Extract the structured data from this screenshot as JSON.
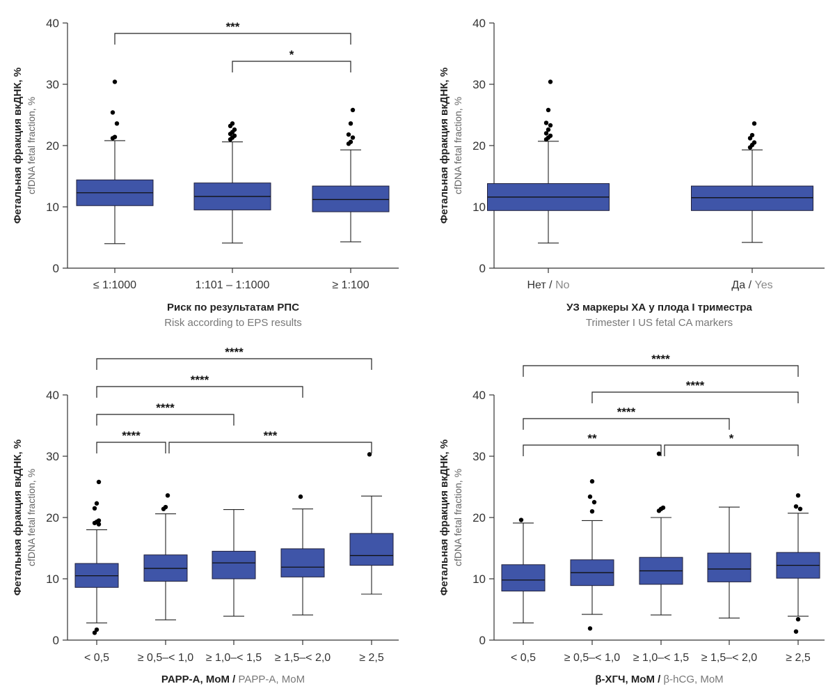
{
  "colors": {
    "box": "#3f55a8",
    "box_dark": "#2f4f9e",
    "outlier": "#000000"
  },
  "chart_data": [
    {
      "type": "box",
      "ylabel_ru": "Фетальная фракция вкДНК, %",
      "ylabel_en": "cfDNA fetal fraction, %",
      "xtitle_ru": "Риск по результатам РПС",
      "xtitle_en": "Risk according to EPS results",
      "xtitle_inline": false,
      "ylim": [
        0,
        40
      ],
      "yticks": [
        "0",
        "10",
        "20",
        "30",
        "40"
      ],
      "categories": [
        "≤ 1:1000",
        "1:101 – 1:1000",
        "≥ 1:100"
      ],
      "boxes": [
        {
          "whisker_low": 4.0,
          "q1": 10.2,
          "median": 12.3,
          "q3": 14.4,
          "whisker_high": 20.8,
          "outliers": [
            21.2,
            21.4,
            23.6,
            25.4,
            30.4
          ]
        },
        {
          "whisker_low": 4.1,
          "q1": 9.5,
          "median": 11.7,
          "q3": 13.9,
          "whisker_high": 20.6,
          "outliers": [
            21.0,
            21.3,
            21.6,
            21.9,
            22.2,
            22.6,
            23.2,
            23.6
          ]
        },
        {
          "whisker_low": 4.3,
          "q1": 9.2,
          "median": 11.2,
          "q3": 13.4,
          "whisker_high": 19.3,
          "outliers": [
            20.3,
            20.6,
            21.3,
            21.8,
            23.6,
            25.8
          ]
        }
      ],
      "significance": [
        {
          "from": 0,
          "to": 2,
          "level": 1,
          "label": "***"
        },
        {
          "from": 1,
          "to": 2,
          "level": 0,
          "label": "*"
        }
      ]
    },
    {
      "type": "box",
      "ylabel_ru": "Фетальная фракция вкДНК, %",
      "ylabel_en": "cfDNA fetal fraction, %",
      "xtitle_ru": "УЗ маркеры ХА у плода I триместра",
      "xtitle_en": "Trimester I US fetal CA markers",
      "xtitle_inline": false,
      "ylim": [
        0,
        40
      ],
      "yticks": [
        "0",
        "10",
        "20",
        "30",
        "40"
      ],
      "categories": [
        {
          "ru": "Нет",
          "en": "No"
        },
        {
          "ru": "Да",
          "en": "Yes"
        }
      ],
      "boxes": [
        {
          "whisker_low": 4.1,
          "q1": 9.4,
          "median": 11.6,
          "q3": 13.8,
          "whisker_high": 20.7,
          "outliers": [
            21.0,
            21.3,
            21.6,
            22.0,
            22.6,
            23.3,
            23.7,
            25.8,
            30.4
          ]
        },
        {
          "whisker_low": 4.2,
          "q1": 9.4,
          "median": 11.5,
          "q3": 13.4,
          "whisker_high": 19.3,
          "outliers": [
            19.7,
            20.1,
            20.5,
            21.2,
            21.7,
            23.6
          ]
        }
      ],
      "significance": []
    },
    {
      "type": "box",
      "ylabel_ru": "Фетальная фракция вкДНК, %",
      "ylabel_en": "cfDNA fetal fraction, %",
      "xtitle_ru": "PAPP-A, MoM",
      "xtitle_en": "PAPP-A, MoM",
      "xtitle_inline": true,
      "ylim": [
        0,
        40
      ],
      "yticks": [
        "0",
        "10",
        "20",
        "30",
        "40"
      ],
      "categories": [
        "< 0,5",
        "≥ 0,5–< 1,0",
        "≥ 1,0–< 1,5",
        "≥ 1,5–< 2,0",
        "≥ 2,5"
      ],
      "boxes": [
        {
          "whisker_low": 2.8,
          "q1": 8.6,
          "median": 10.5,
          "q3": 12.5,
          "whisker_high": 18.0,
          "outliers": [
            1.2,
            1.7,
            18.9,
            19.1,
            19.3,
            19.5,
            21.5,
            22.3,
            25.8
          ]
        },
        {
          "whisker_low": 3.3,
          "q1": 9.6,
          "median": 11.7,
          "q3": 13.9,
          "whisker_high": 20.6,
          "outliers": [
            21.4,
            21.7,
            23.6
          ]
        },
        {
          "whisker_low": 3.9,
          "q1": 10.0,
          "median": 12.6,
          "q3": 14.5,
          "whisker_high": 21.3,
          "outliers": []
        },
        {
          "whisker_low": 4.1,
          "q1": 10.3,
          "median": 11.9,
          "q3": 14.9,
          "whisker_high": 21.4,
          "outliers": [
            23.4
          ]
        },
        {
          "whisker_low": 7.5,
          "q1": 12.2,
          "median": 13.8,
          "q3": 17.4,
          "whisker_high": 23.5,
          "outliers": [
            30.3
          ]
        }
      ],
      "significance": [
        {
          "from": 0,
          "to": 4,
          "level": 3,
          "label": "****"
        },
        {
          "from": 0,
          "to": 3,
          "level": 2,
          "label": "****"
        },
        {
          "from": 0,
          "to": 2,
          "level": 1,
          "label": "****"
        },
        {
          "from": 0,
          "to": 1,
          "level": 0,
          "label": "****"
        },
        {
          "from": 1,
          "to": 4,
          "level": 0,
          "label": "***"
        }
      ]
    },
    {
      "type": "box",
      "ylabel_ru": "Фетальная фракция вкДНК, %",
      "ylabel_en": "cfDNA fetal fraction, %",
      "xtitle_ru": "β-ХГЧ, MoM",
      "xtitle_en": "β-hCG, MoM",
      "xtitle_inline": true,
      "ylim": [
        0,
        40
      ],
      "yticks": [
        "0",
        "10",
        "20",
        "30",
        "40"
      ],
      "categories": [
        "< 0,5",
        "≥ 0,5–< 1,0",
        "≥ 1,0–< 1,5",
        "≥ 1,5–< 2,0",
        "≥ 2,5"
      ],
      "boxes": [
        {
          "whisker_low": 2.8,
          "q1": 8.0,
          "median": 9.8,
          "q3": 12.3,
          "whisker_high": 19.1,
          "outliers": [
            19.6
          ]
        },
        {
          "whisker_low": 4.2,
          "q1": 8.9,
          "median": 11.0,
          "q3": 13.1,
          "whisker_high": 19.5,
          "outliers": [
            1.9,
            21.0,
            22.5,
            23.4,
            25.9
          ]
        },
        {
          "whisker_low": 4.1,
          "q1": 9.1,
          "median": 11.3,
          "q3": 13.5,
          "whisker_high": 20.0,
          "outliers": [
            21.1,
            21.4,
            21.6,
            30.4
          ]
        },
        {
          "whisker_low": 3.6,
          "q1": 9.5,
          "median": 11.6,
          "q3": 14.2,
          "whisker_high": 21.7,
          "outliers": []
        },
        {
          "whisker_low": 3.9,
          "q1": 10.1,
          "median": 12.2,
          "q3": 14.3,
          "whisker_high": 20.7,
          "outliers": [
            1.4,
            3.4,
            21.4,
            21.8,
            23.6
          ]
        }
      ],
      "significance": [
        {
          "from": 0,
          "to": 4,
          "level": 3,
          "label": "****"
        },
        {
          "from": 1,
          "to": 4,
          "level": 2,
          "label": "****"
        },
        {
          "from": 0,
          "to": 3,
          "level": 1,
          "label": "****"
        },
        {
          "from": 0,
          "to": 2,
          "level": 0,
          "label": "**"
        },
        {
          "from": 2,
          "to": 4,
          "level": 0,
          "label": "*"
        }
      ]
    }
  ]
}
